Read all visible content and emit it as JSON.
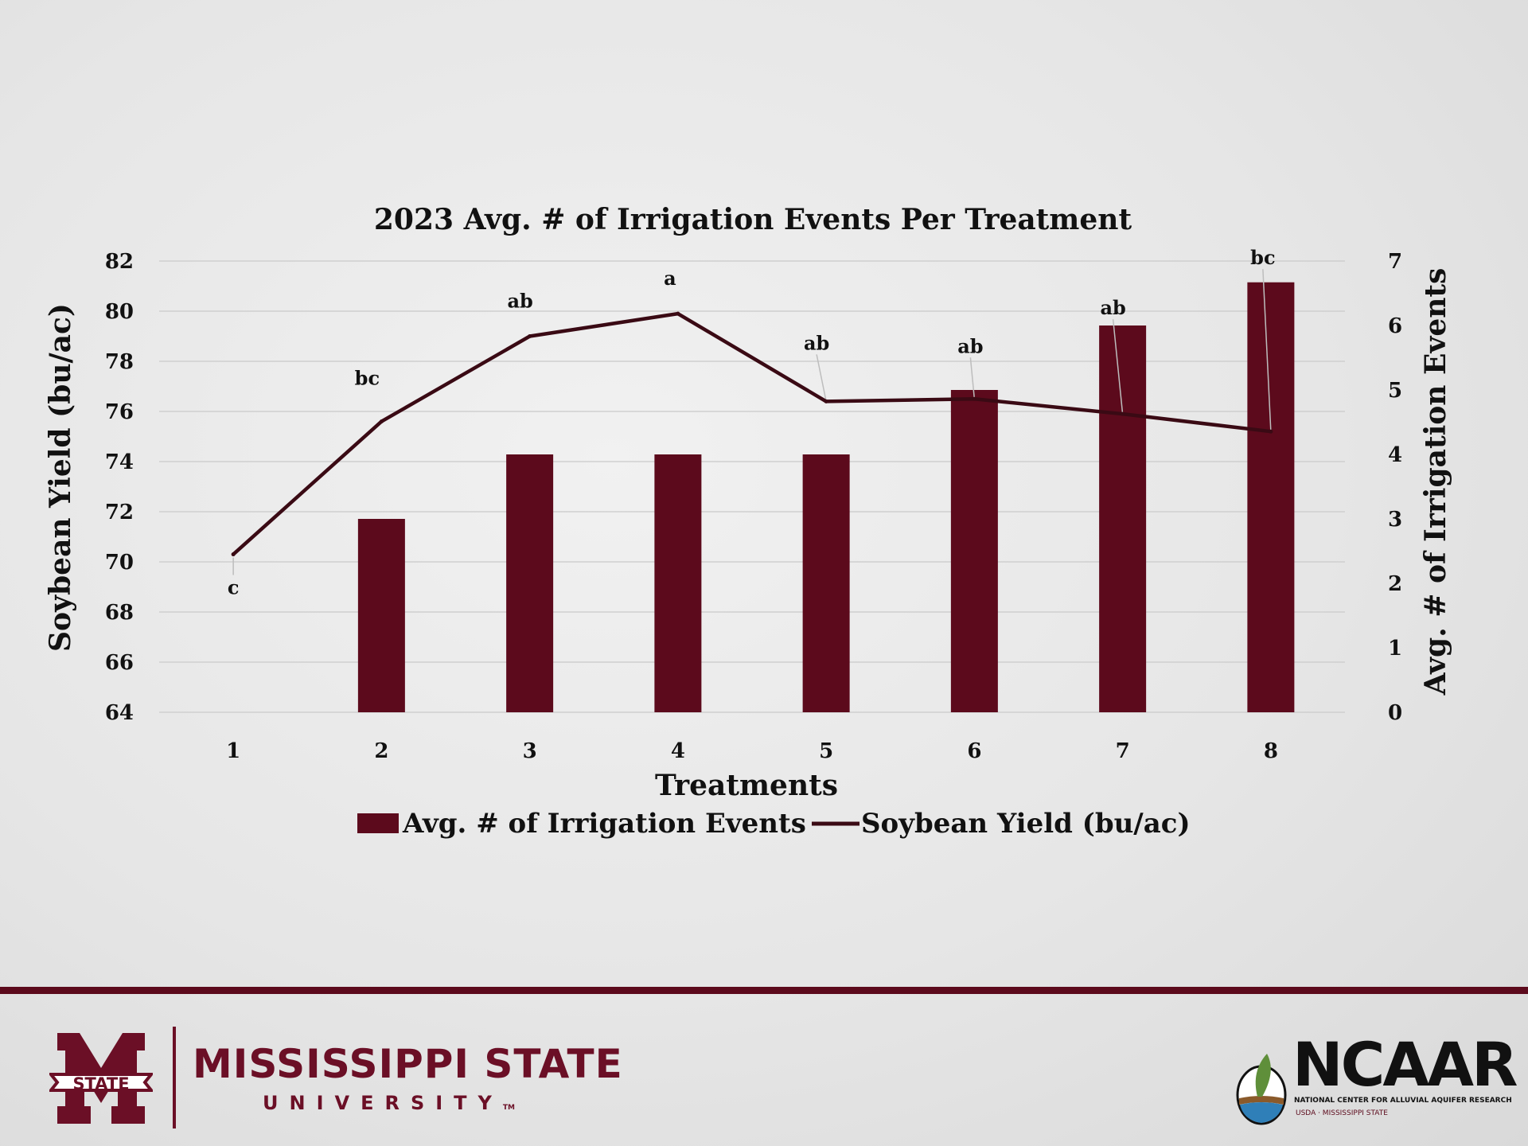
{
  "chart_data": {
    "type": "bar+line",
    "title": "2023 Avg. # of Irrigation Events Per Treatment",
    "xlabel": "Treatments",
    "ylabel_left": "Soybean Yield (bu/ac)",
    "ylabel_right": "Avg. # of Irrigation Events",
    "categories": [
      "1",
      "2",
      "3",
      "4",
      "5",
      "6",
      "7",
      "8"
    ],
    "ylim_left": [
      64,
      82
    ],
    "yticks_left": [
      64,
      66,
      68,
      70,
      72,
      74,
      76,
      78,
      80,
      82
    ],
    "ylim_right": [
      0,
      7
    ],
    "yticks_right": [
      0,
      1,
      2,
      3,
      4,
      5,
      6,
      7
    ],
    "grid": true,
    "legend_position": "bottom",
    "series": [
      {
        "name": "Avg. # of Irrigation Events",
        "type": "bar",
        "axis": "right",
        "color": "#5c0a1c",
        "values": [
          0,
          3,
          4,
          4,
          4,
          5,
          6,
          6.67
        ]
      },
      {
        "name": "Soybean Yield (bu/ac)",
        "type": "line",
        "axis": "left",
        "color": "#3a0a14",
        "values": [
          70.3,
          75.6,
          79.0,
          79.9,
          76.4,
          76.5,
          75.9,
          75.2
        ],
        "labels": [
          "c",
          "bc",
          "ab",
          "a",
          "ab",
          "ab",
          "ab",
          "bc"
        ]
      }
    ]
  },
  "footer": {
    "msu_shield": "STATE",
    "msu_name": "MISSISSIPPI STATE",
    "msu_univ": "UNIVERSITY",
    "msu_tm": "TM",
    "ncaar_name": "NCAAR",
    "ncaar_sub": "NATIONAL CENTER FOR ALLUVIAL AQUIFER RESEARCH",
    "ncaar_partners": "USDA · MISSISSIPPI STATE",
    "accent_color": "#5c0a1c"
  }
}
